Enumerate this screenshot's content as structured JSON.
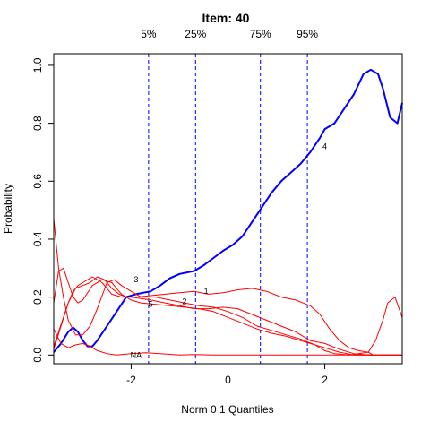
{
  "chart_data": {
    "type": "line",
    "title": "Item:  40",
    "xlabel": "Norm 0 1 Quantiles",
    "ylabel": "Probability",
    "xlim": [
      -3.6,
      3.6
    ],
    "ylim": [
      -0.03,
      1.04
    ],
    "xticks": [
      -2,
      0,
      2
    ],
    "xtick_labels": [
      "-2",
      "0",
      "2"
    ],
    "yticks": [
      0.0,
      0.2,
      0.4,
      0.6,
      0.8,
      1.0
    ],
    "ytick_labels": [
      "0.0",
      "0.2",
      "0.4",
      "0.6",
      "0.8",
      "1.0"
    ],
    "grid": false,
    "colors": {
      "key_option": "#0000ff",
      "distractor": "#ff0000",
      "quantile_line": "#0000ff",
      "frame": "#000000"
    },
    "quantile_lines": [
      {
        "label": "5%",
        "x": -1.64
      },
      {
        "label": "25%",
        "x": -0.67
      },
      {
        "label": "",
        "x": 0.0
      },
      {
        "label": "75%",
        "x": 0.67
      },
      {
        "label": "95%",
        "x": 1.64
      }
    ],
    "series": [
      {
        "name": "4",
        "role": "key",
        "label_at": [
          2.0,
          0.72
        ],
        "points": [
          [
            -3.6,
            0.01
          ],
          [
            -3.45,
            0.04
          ],
          [
            -3.3,
            0.08
          ],
          [
            -3.2,
            0.095
          ],
          [
            -3.1,
            0.08
          ],
          [
            -3.0,
            0.05
          ],
          [
            -2.9,
            0.03
          ],
          [
            -2.8,
            0.03
          ],
          [
            -2.7,
            0.05
          ],
          [
            -2.5,
            0.1
          ],
          [
            -2.3,
            0.15
          ],
          [
            -2.1,
            0.2
          ],
          [
            -1.9,
            0.21
          ],
          [
            -1.6,
            0.22
          ],
          [
            -1.4,
            0.24
          ],
          [
            -1.2,
            0.265
          ],
          [
            -1.0,
            0.28
          ],
          [
            -0.7,
            0.29
          ],
          [
            -0.5,
            0.31
          ],
          [
            -0.3,
            0.335
          ],
          [
            -0.1,
            0.36
          ],
          [
            0.1,
            0.38
          ],
          [
            0.3,
            0.41
          ],
          [
            0.5,
            0.46
          ],
          [
            0.7,
            0.51
          ],
          [
            0.9,
            0.56
          ],
          [
            1.1,
            0.6
          ],
          [
            1.3,
            0.63
          ],
          [
            1.5,
            0.66
          ],
          [
            1.7,
            0.7
          ],
          [
            1.9,
            0.75
          ],
          [
            2.0,
            0.78
          ],
          [
            2.2,
            0.8
          ],
          [
            2.4,
            0.85
          ],
          [
            2.6,
            0.9
          ],
          [
            2.8,
            0.97
          ],
          [
            2.95,
            0.985
          ],
          [
            3.1,
            0.97
          ],
          [
            3.2,
            0.92
          ],
          [
            3.35,
            0.82
          ],
          [
            3.5,
            0.8
          ],
          [
            3.6,
            0.87
          ]
        ]
      },
      {
        "name": "3",
        "role": "distractor",
        "label_at": [
          -1.9,
          0.26
        ],
        "points": [
          [
            -3.6,
            0.47
          ],
          [
            -3.5,
            0.3
          ],
          [
            -3.4,
            0.2
          ],
          [
            -3.3,
            0.12
          ],
          [
            -3.15,
            0.07
          ],
          [
            -3.0,
            0.07
          ],
          [
            -2.85,
            0.1
          ],
          [
            -2.7,
            0.16
          ],
          [
            -2.5,
            0.25
          ],
          [
            -2.35,
            0.26
          ],
          [
            -2.2,
            0.24
          ],
          [
            -2.0,
            0.22
          ],
          [
            -1.8,
            0.2
          ],
          [
            -1.5,
            0.2
          ],
          [
            -1.2,
            0.19
          ],
          [
            -0.9,
            0.18
          ],
          [
            -0.6,
            0.17
          ],
          [
            -0.3,
            0.165
          ],
          [
            0.0,
            0.15
          ],
          [
            0.3,
            0.13
          ],
          [
            0.6,
            0.1
          ],
          [
            0.9,
            0.085
          ],
          [
            1.2,
            0.07
          ],
          [
            1.5,
            0.055
          ],
          [
            1.8,
            0.035
          ],
          [
            2.0,
            0.015
          ],
          [
            2.2,
            0.005
          ],
          [
            2.5,
            0.0
          ],
          [
            3.0,
            0.0
          ],
          [
            3.6,
            0.0
          ]
        ]
      },
      {
        "name": "5",
        "role": "distractor",
        "label_at": [
          -1.6,
          0.175
        ],
        "points": [
          [
            -3.6,
            0.18
          ],
          [
            -3.5,
            0.29
          ],
          [
            -3.4,
            0.3
          ],
          [
            -3.3,
            0.25
          ],
          [
            -3.2,
            0.2
          ],
          [
            -3.1,
            0.18
          ],
          [
            -3.0,
            0.19
          ],
          [
            -2.8,
            0.24
          ],
          [
            -2.6,
            0.26
          ],
          [
            -2.4,
            0.25
          ],
          [
            -2.2,
            0.21
          ],
          [
            -2.0,
            0.19
          ],
          [
            -1.8,
            0.18
          ],
          [
            -1.5,
            0.175
          ],
          [
            -1.2,
            0.17
          ],
          [
            -0.9,
            0.165
          ],
          [
            -0.6,
            0.16
          ],
          [
            -0.3,
            0.15
          ],
          [
            0.0,
            0.13
          ],
          [
            0.3,
            0.11
          ],
          [
            0.6,
            0.09
          ],
          [
            0.9,
            0.075
          ],
          [
            1.2,
            0.065
          ],
          [
            1.5,
            0.05
          ],
          [
            1.8,
            0.035
          ],
          [
            2.0,
            0.025
          ],
          [
            2.3,
            0.01
          ],
          [
            2.6,
            0.0
          ],
          [
            3.0,
            0.0
          ],
          [
            3.6,
            0.0
          ]
        ]
      },
      {
        "name": "2",
        "role": "distractor",
        "label_at": [
          -0.9,
          0.185
        ],
        "points": [
          [
            -3.6,
            0.03
          ],
          [
            -3.5,
            0.08
          ],
          [
            -3.4,
            0.13
          ],
          [
            -3.3,
            0.18
          ],
          [
            -3.2,
            0.22
          ],
          [
            -3.1,
            0.24
          ],
          [
            -3.0,
            0.25
          ],
          [
            -2.9,
            0.26
          ],
          [
            -2.8,
            0.27
          ],
          [
            -2.6,
            0.25
          ],
          [
            -2.4,
            0.21
          ],
          [
            -2.2,
            0.2
          ],
          [
            -2.0,
            0.2
          ],
          [
            -1.8,
            0.195
          ],
          [
            -1.6,
            0.19
          ],
          [
            -1.3,
            0.18
          ],
          [
            -1.0,
            0.17
          ],
          [
            -0.7,
            0.16
          ],
          [
            -0.4,
            0.16
          ],
          [
            -0.1,
            0.165
          ],
          [
            0.2,
            0.16
          ],
          [
            0.5,
            0.14
          ],
          [
            0.8,
            0.12
          ],
          [
            1.1,
            0.1
          ],
          [
            1.4,
            0.08
          ],
          [
            1.7,
            0.05
          ],
          [
            2.0,
            0.04
          ],
          [
            2.3,
            0.02
          ],
          [
            2.6,
            0.005
          ],
          [
            2.9,
            0.0
          ],
          [
            3.6,
            0.0
          ]
        ]
      },
      {
        "name": "1",
        "role": "distractor",
        "label_at": [
          -0.45,
          0.22
        ],
        "points": [
          [
            -3.6,
            0.02
          ],
          [
            -3.45,
            0.1
          ],
          [
            -3.3,
            0.18
          ],
          [
            -3.15,
            0.23
          ],
          [
            -3.0,
            0.24
          ],
          [
            -2.85,
            0.25
          ],
          [
            -2.7,
            0.27
          ],
          [
            -2.55,
            0.26
          ],
          [
            -2.4,
            0.23
          ],
          [
            -2.25,
            0.21
          ],
          [
            -2.1,
            0.2
          ],
          [
            -1.9,
            0.2
          ],
          [
            -1.6,
            0.205
          ],
          [
            -1.3,
            0.21
          ],
          [
            -1.0,
            0.215
          ],
          [
            -0.7,
            0.22
          ],
          [
            -0.4,
            0.21
          ],
          [
            -0.1,
            0.215
          ],
          [
            0.2,
            0.225
          ],
          [
            0.5,
            0.23
          ],
          [
            0.8,
            0.22
          ],
          [
            1.1,
            0.2
          ],
          [
            1.4,
            0.19
          ],
          [
            1.7,
            0.17
          ],
          [
            1.9,
            0.14
          ],
          [
            2.1,
            0.09
          ],
          [
            2.3,
            0.05
          ],
          [
            2.5,
            0.025
          ],
          [
            2.7,
            0.015
          ],
          [
            2.9,
            0.01
          ],
          [
            3.0,
            0.0
          ],
          [
            3.6,
            0.0
          ]
        ]
      },
      {
        "name": "NA",
        "role": "distractor",
        "label_at": [
          -1.9,
          0.0
        ],
        "points": [
          [
            -3.6,
            0.09
          ],
          [
            -3.45,
            0.04
          ],
          [
            -3.3,
            0.025
          ],
          [
            -3.15,
            0.035
          ],
          [
            -3.0,
            0.04
          ],
          [
            -2.85,
            0.03
          ],
          [
            -2.7,
            0.015
          ],
          [
            -2.5,
            0.005
          ],
          [
            -2.3,
            0.0
          ],
          [
            -2.0,
            0.005
          ],
          [
            -1.7,
            0.008
          ],
          [
            -1.4,
            0.005
          ],
          [
            -1.0,
            0.0
          ],
          [
            -0.7,
            0.002
          ],
          [
            -0.3,
            0.0
          ],
          [
            0.0,
            0.0
          ],
          [
            0.5,
            0.0
          ],
          [
            1.0,
            0.0
          ],
          [
            1.5,
            0.0
          ],
          [
            2.0,
            0.0
          ],
          [
            2.5,
            0.0
          ],
          [
            2.9,
            0.01
          ],
          [
            3.05,
            0.05
          ],
          [
            3.2,
            0.12
          ],
          [
            3.3,
            0.18
          ],
          [
            3.45,
            0.2
          ],
          [
            3.6,
            0.13
          ]
        ]
      }
    ]
  }
}
